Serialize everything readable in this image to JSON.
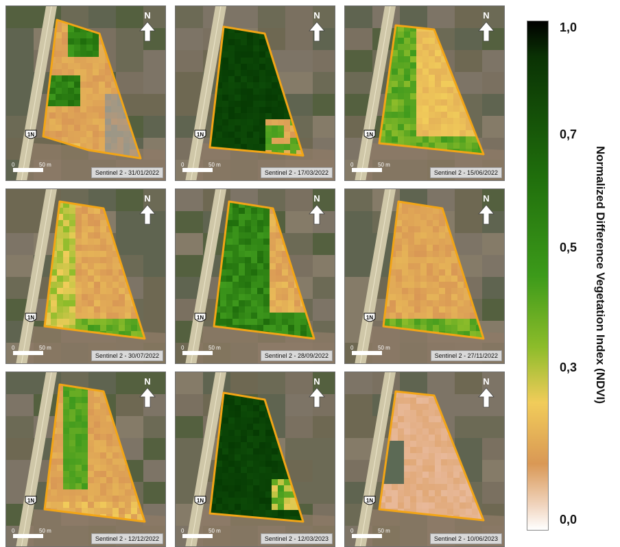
{
  "panels": [
    {
      "caption": "Sentinel 2 - 31/01/2022",
      "shape": "A",
      "palette": "mixed-jan"
    },
    {
      "caption": "Sentinel 2 - 17/03/2022",
      "shape": "B",
      "palette": "dark"
    },
    {
      "caption": "Sentinel 2 - 15/06/2022",
      "shape": "C",
      "palette": "yellow-green"
    },
    {
      "caption": "Sentinel 2 - 30/07/2022",
      "shape": "D",
      "palette": "orange-green-left"
    },
    {
      "caption": "Sentinel 2 - 28/09/2022",
      "shape": "D",
      "palette": "green-left"
    },
    {
      "caption": "Sentinel 2 - 27/11/2022",
      "shape": "D",
      "palette": "orange-bottom-green"
    },
    {
      "caption": "Sentinel 2 - 12/12/2022",
      "shape": "D",
      "palette": "green-strip"
    },
    {
      "caption": "Sentinel 2 - 12/03/2023",
      "shape": "B",
      "palette": "dark-corner"
    },
    {
      "caption": "Sentinel 2 - 10/06/2023",
      "shape": "C",
      "palette": "pale"
    }
  ],
  "map_labels": {
    "north": "N",
    "scale_zero": "0",
    "scale_distance": "50 m",
    "road_shield": "1N"
  },
  "legend": {
    "title": "Normalized Difference Vegetation Index (NDVI)",
    "ticks": [
      "1,0",
      "0,7",
      "0,5",
      "0,3",
      "0,0"
    ]
  },
  "colors": {
    "field_outline": "#f2a516",
    "road": "#cfc7a8",
    "ndvi_max": "#000000",
    "ndvi_high": "#1f6d0c",
    "ndvi_mid": "#8cbc2a",
    "ndvi_low": "#f1cc5a",
    "ndvi_lower": "#d99855",
    "ndvi_min": "#ffffff"
  }
}
